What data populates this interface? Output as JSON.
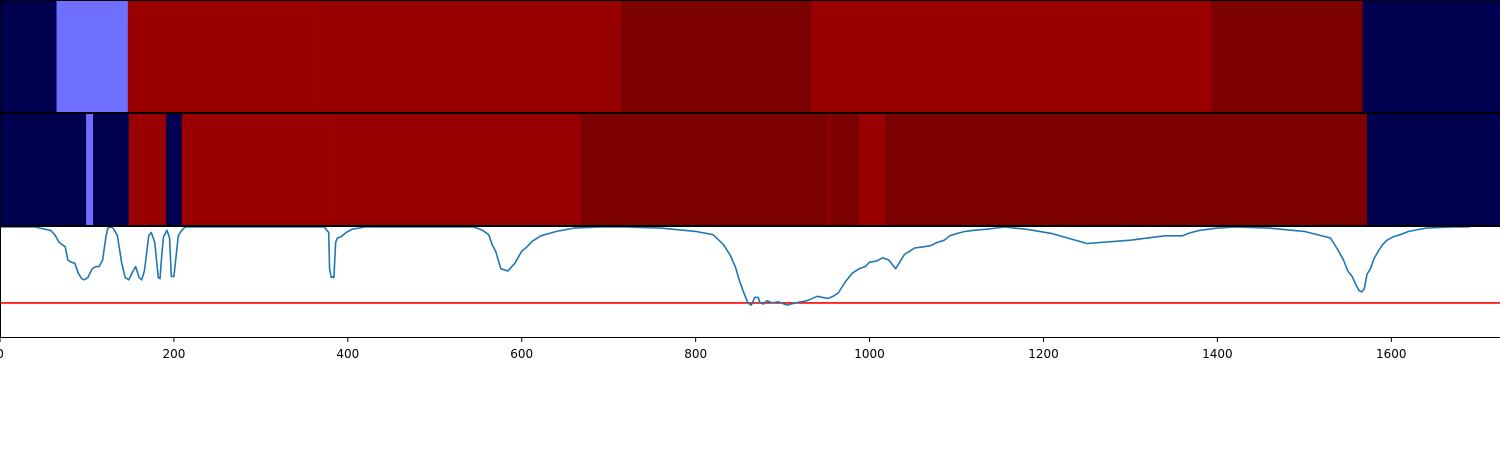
{
  "chart_data": [
    {
      "type": "heatmap",
      "x_range": [
        0,
        1725
      ],
      "segments": [
        {
          "start": 0,
          "end": 65,
          "color": "#000050"
        },
        {
          "start": 65,
          "end": 147,
          "color": "#6f6fff"
        },
        {
          "start": 147,
          "end": 366,
          "color": "#9a0000"
        },
        {
          "start": 366,
          "end": 714,
          "color": "#960000"
        },
        {
          "start": 714,
          "end": 933,
          "color": "#7c0000"
        },
        {
          "start": 933,
          "end": 1393,
          "color": "#9a0000"
        },
        {
          "start": 1393,
          "end": 1567,
          "color": "#7c0000"
        },
        {
          "start": 1567,
          "end": 1725,
          "color": "#000050"
        }
      ]
    },
    {
      "type": "heatmap",
      "x_range": [
        0,
        1725
      ],
      "segments": [
        {
          "start": 0,
          "end": 99,
          "color": "#000050"
        },
        {
          "start": 99,
          "end": 107,
          "color": "#6f6fff"
        },
        {
          "start": 107,
          "end": 148,
          "color": "#000050"
        },
        {
          "start": 148,
          "end": 191,
          "color": "#9a0000"
        },
        {
          "start": 191,
          "end": 209,
          "color": "#000050"
        },
        {
          "start": 209,
          "end": 384,
          "color": "#9a0000"
        },
        {
          "start": 384,
          "end": 668,
          "color": "#960000"
        },
        {
          "start": 668,
          "end": 951,
          "color": "#7c0000"
        },
        {
          "start": 951,
          "end": 956,
          "color": "#8a0000"
        },
        {
          "start": 956,
          "end": 988,
          "color": "#7c0000"
        },
        {
          "start": 988,
          "end": 1018,
          "color": "#9a0000"
        },
        {
          "start": 1018,
          "end": 1572,
          "color": "#7c0000"
        },
        {
          "start": 1572,
          "end": 1725,
          "color": "#000050"
        }
      ]
    },
    {
      "type": "line",
      "x_range": [
        0,
        1725
      ],
      "y_range": [
        0,
        1
      ],
      "threshold": 0.31,
      "threshold_color": "#ff0000",
      "line_color": "#1f77b4",
      "x_ticks": [
        0,
        200,
        400,
        600,
        800,
        1000,
        1200,
        1400,
        1600
      ],
      "x_tick_labels": [
        "0",
        "200",
        "400",
        "600",
        "800",
        "1000",
        "1200",
        "1400",
        "1600"
      ],
      "series": [
        {
          "x": [
            0,
            40,
            58,
            63,
            68,
            75,
            78,
            82,
            86,
            90,
            94,
            97,
            101,
            106,
            110,
            114,
            118,
            122,
            124,
            128,
            131,
            135,
            140,
            144,
            148,
            150,
            153,
            156,
            160,
            163,
            166,
            168,
            171,
            174,
            178,
            182,
            184,
            186,
            188,
            192,
            195,
            197,
            200,
            205,
            209,
            213,
            220,
            240,
            300,
            360,
            373,
            378,
            379,
            381,
            383,
            384,
            386,
            388,
            392,
            398,
            405,
            420,
            450,
            500,
            545,
            555,
            562,
            566,
            570,
            576,
            584,
            592,
            600,
            606,
            612,
            622,
            640,
            660,
            690,
            720,
            760,
            800,
            820,
            832,
            840,
            846,
            850,
            855,
            860,
            864,
            868,
            872,
            874,
            878,
            882,
            888,
            895,
            905,
            915,
            928,
            940,
            952,
            958,
            964,
            972,
            980,
            988,
            995,
            1000,
            1008,
            1015,
            1022,
            1030,
            1040,
            1052,
            1062,
            1070,
            1078,
            1086,
            1092,
            1100,
            1110,
            1120,
            1135,
            1155,
            1180,
            1210,
            1250,
            1300,
            1340,
            1360,
            1366,
            1370,
            1375,
            1380,
            1390,
            1400,
            1420,
            1460,
            1500,
            1530,
            1538,
            1545,
            1550,
            1555,
            1559,
            1563,
            1566,
            1569,
            1572,
            1576,
            1580,
            1585,
            1590,
            1595,
            1602,
            1610,
            1620,
            1640,
            1670,
            1690
          ],
          "y": [
            1.0,
            1.0,
            0.97,
            0.93,
            0.86,
            0.82,
            0.7,
            0.68,
            0.67,
            0.58,
            0.53,
            0.52,
            0.54,
            0.62,
            0.64,
            0.64,
            0.7,
            0.92,
            0.99,
            1.0,
            0.98,
            0.92,
            0.67,
            0.54,
            0.52,
            0.55,
            0.6,
            0.64,
            0.54,
            0.52,
            0.6,
            0.72,
            0.92,
            0.95,
            0.86,
            0.54,
            0.53,
            0.74,
            0.91,
            0.97,
            0.9,
            0.55,
            0.55,
            0.92,
            0.97,
            1.0,
            1.0,
            1.0,
            1.0,
            1.0,
            1.0,
            0.95,
            0.62,
            0.54,
            0.55,
            0.54,
            0.86,
            0.9,
            0.91,
            0.95,
            0.98,
            1.0,
            1.0,
            1.0,
            1.0,
            0.97,
            0.93,
            0.84,
            0.78,
            0.62,
            0.6,
            0.67,
            0.78,
            0.82,
            0.87,
            0.92,
            0.96,
            0.99,
            1.0,
            1.0,
            0.99,
            0.96,
            0.93,
            0.84,
            0.74,
            0.63,
            0.52,
            0.41,
            0.31,
            0.29,
            0.36,
            0.36,
            0.31,
            0.3,
            0.33,
            0.31,
            0.32,
            0.29,
            0.31,
            0.33,
            0.37,
            0.35,
            0.37,
            0.4,
            0.5,
            0.58,
            0.62,
            0.64,
            0.68,
            0.69,
            0.72,
            0.7,
            0.62,
            0.75,
            0.81,
            0.82,
            0.83,
            0.86,
            0.88,
            0.92,
            0.94,
            0.96,
            0.97,
            0.98,
            1.0,
            0.98,
            0.94,
            0.85,
            0.88,
            0.92,
            0.92,
            0.94,
            0.95,
            0.96,
            0.97,
            0.98,
            0.99,
            1.0,
            0.99,
            0.96,
            0.9,
            0.8,
            0.7,
            0.6,
            0.55,
            0.48,
            0.42,
            0.41,
            0.44,
            0.57,
            0.62,
            0.71,
            0.78,
            0.84,
            0.88,
            0.91,
            0.93,
            0.96,
            0.99,
            1.0,
            1.0
          ]
        }
      ]
    }
  ]
}
